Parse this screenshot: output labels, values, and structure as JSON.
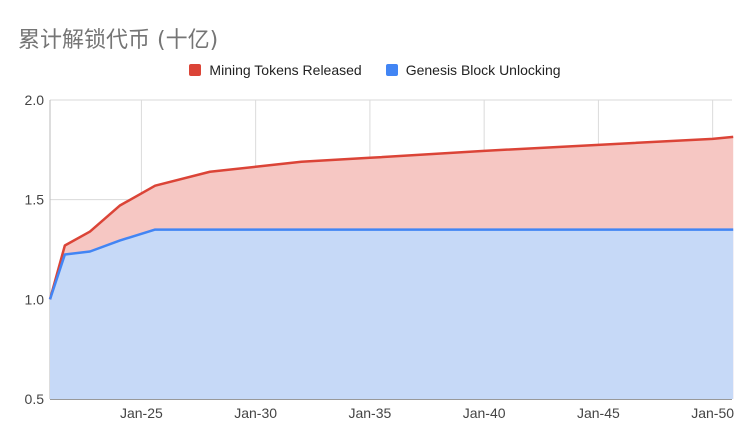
{
  "chart_data": {
    "type": "area",
    "title": "累计解锁代币 (十亿)",
    "xlabel": "",
    "ylabel": "",
    "ylim": [
      0.5,
      2.0
    ],
    "yticks": [
      "0.5",
      "1.0",
      "1.5",
      "2.0"
    ],
    "xticks": [
      "Jan-25",
      "Jan-30",
      "Jan-35",
      "Jan-40",
      "Jan-45",
      "Jan-50"
    ],
    "grid": true,
    "legend_position": "top",
    "series": [
      {
        "name": "Mining Tokens Released",
        "color": "#db4437",
        "fill": "#f6c7c3",
        "points": [
          [
            2021.0,
            1.0
          ],
          [
            2021.65,
            1.27
          ],
          [
            2022.75,
            1.34
          ],
          [
            2024.05,
            1.47
          ],
          [
            2025.6,
            1.57
          ],
          [
            2028.0,
            1.64
          ],
          [
            2030.0,
            1.665
          ],
          [
            2032.0,
            1.69
          ],
          [
            2035.0,
            1.71
          ],
          [
            2040.0,
            1.745
          ],
          [
            2045.0,
            1.775
          ],
          [
            2050.0,
            1.805
          ],
          [
            2050.9,
            1.815
          ]
        ]
      },
      {
        "name": "Genesis Block Unlocking",
        "color": "#4285f4",
        "fill": "#c6d9f7",
        "points": [
          [
            2021.0,
            1.0
          ],
          [
            2021.65,
            1.225
          ],
          [
            2022.75,
            1.24
          ],
          [
            2024.05,
            1.295
          ],
          [
            2025.6,
            1.35
          ],
          [
            2030.0,
            1.35
          ],
          [
            2035.0,
            1.35
          ],
          [
            2040.0,
            1.35
          ],
          [
            2045.0,
            1.35
          ],
          [
            2050.9,
            1.35
          ]
        ]
      }
    ]
  },
  "legend": {
    "items": [
      {
        "label": "Mining Tokens Released",
        "color": "#db4437"
      },
      {
        "label": "Genesis Block Unlocking",
        "color": "#4285f4"
      }
    ]
  }
}
